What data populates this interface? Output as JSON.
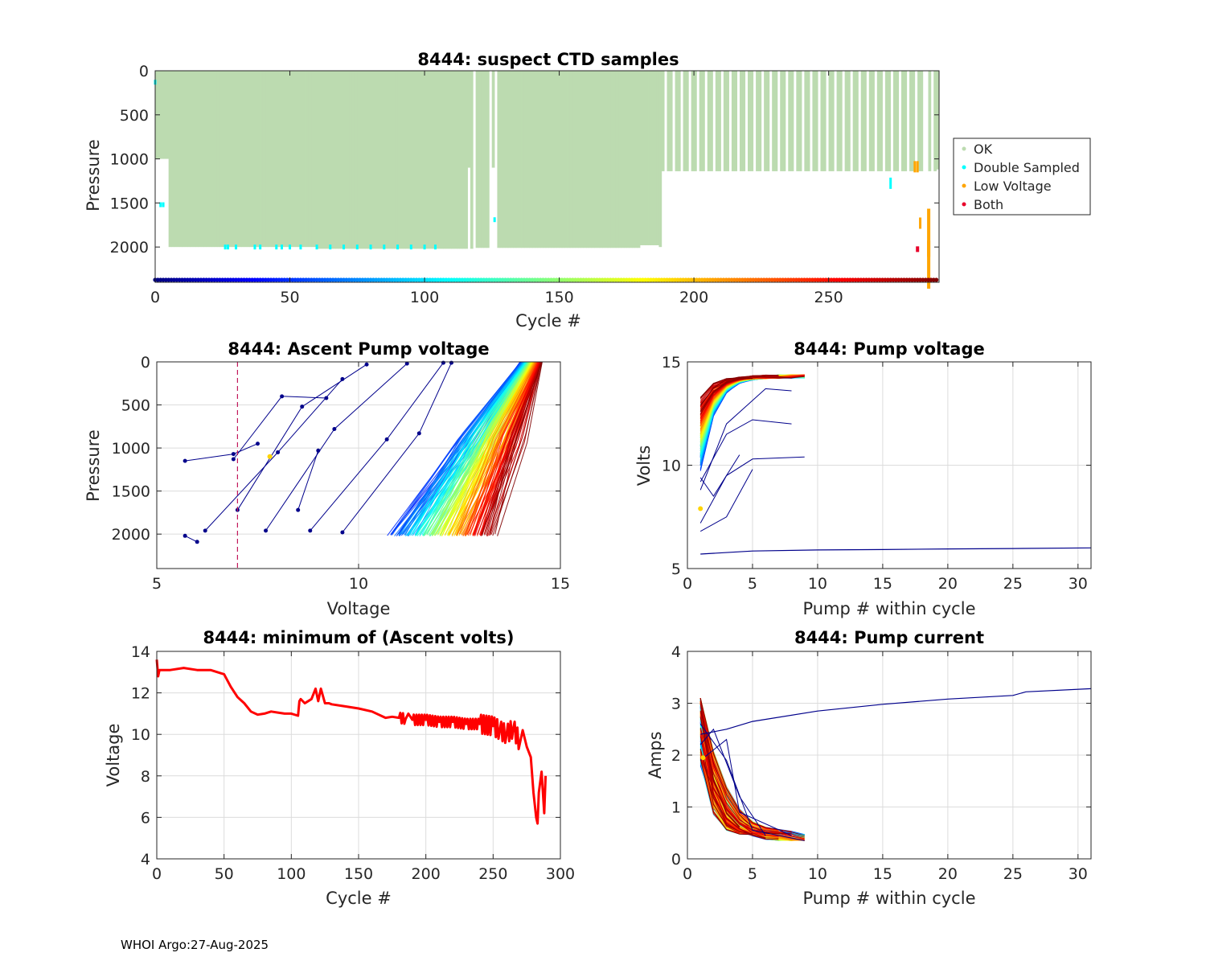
{
  "footer": "WHOI Argo:27-Aug-2025",
  "colors": {
    "ok": "#bcdbb0",
    "double": "#00ffff",
    "low": "#ffa500",
    "both": "#e8002a",
    "min_line": "#ff0000",
    "dashed": "#c2185b"
  },
  "chart_data": [
    {
      "id": "ctd",
      "type": "area",
      "title": "8444: suspect CTD samples",
      "xlabel": "Cycle #",
      "ylabel": "Pressure",
      "xlim": [
        0,
        291
      ],
      "ylim": [
        0,
        2400
      ],
      "y_reversed": true,
      "xticks": [
        "0",
        "50",
        "100",
        "150",
        "200",
        "250"
      ],
      "xtick_values": [
        0,
        50,
        100,
        150,
        200,
        250
      ],
      "yticks": [
        "0",
        "500",
        "1000",
        "1500",
        "2000"
      ],
      "ytick_values": [
        0,
        500,
        1000,
        1500,
        2000
      ],
      "legend": [
        "OK",
        "Double Sampled",
        "Low Voltage",
        "Both"
      ],
      "legend_position": "outside-right",
      "profile_depth_segments": [
        [
          0,
          1000
        ],
        [
          5,
          2000
        ],
        [
          60,
          2020
        ],
        [
          118,
          2010
        ],
        [
          180,
          1980
        ],
        [
          187,
          2000
        ],
        [
          188,
          1140
        ],
        [
          290,
          1120
        ]
      ],
      "double_sampled_points": [
        [
          0,
          130
        ],
        [
          2,
          1520
        ],
        [
          3,
          1520
        ],
        [
          26,
          2000
        ],
        [
          27,
          2000
        ],
        [
          30,
          2000
        ],
        [
          37,
          2000
        ],
        [
          39,
          2000
        ],
        [
          45,
          2000
        ],
        [
          47,
          2000
        ],
        [
          50,
          2000
        ],
        [
          54,
          2000
        ],
        [
          60,
          2000
        ],
        [
          65,
          2000
        ],
        [
          70,
          2000
        ],
        [
          75,
          2000
        ],
        [
          80,
          2000
        ],
        [
          85,
          2000
        ],
        [
          90,
          2000
        ],
        [
          95,
          2000
        ],
        [
          100,
          2000
        ],
        [
          104,
          2000
        ],
        [
          126,
          1690
        ],
        [
          273,
          1240
        ]
      ],
      "low_voltage_points": [
        [
          282,
          1080
        ],
        [
          283,
          1080
        ],
        [
          284,
          1720
        ],
        [
          287,
          1620
        ],
        [
          287,
          1980
        ]
      ],
      "both_points": [
        [
          283,
          2020
        ]
      ]
    },
    {
      "id": "ascent",
      "type": "line",
      "title": "8444: Ascent Pump voltage",
      "xlabel": "Voltage",
      "ylabel": "Pressure",
      "xlim": [
        5,
        15
      ],
      "ylim": [
        0,
        2400
      ],
      "y_reversed": true,
      "xticks": [
        "5",
        "10",
        "15"
      ],
      "xtick_values": [
        5,
        10,
        15
      ],
      "yticks": [
        "0",
        "500",
        "1000",
        "1500",
        "2000"
      ],
      "ytick_values": [
        0,
        500,
        1000,
        1500,
        2000
      ],
      "threshold_voltage": 7.0,
      "late_cycle_segments": [
        [
          [
            5.7,
            1150
          ],
          [
            6.9,
            1070
          ],
          [
            7.5,
            950
          ]
        ],
        [
          [
            5.7,
            2020
          ],
          [
            6.0,
            2090
          ]
        ],
        [
          [
            6.2,
            1960
          ],
          [
            8.0,
            1050
          ],
          [
            9.6,
            200
          ]
        ],
        [
          [
            7.0,
            1720
          ],
          [
            8.6,
            520
          ],
          [
            10.2,
            30
          ]
        ],
        [
          [
            7.7,
            1960
          ],
          [
            9.4,
            780
          ],
          [
            11.2,
            20
          ]
        ],
        [
          [
            8.8,
            1960
          ],
          [
            10.7,
            900
          ],
          [
            12.1,
            10
          ]
        ],
        [
          [
            9.6,
            1980
          ],
          [
            11.5,
            830
          ],
          [
            12.3,
            10
          ]
        ],
        [
          [
            8.5,
            1720
          ],
          [
            9.0,
            1030
          ]
        ],
        [
          [
            6.9,
            1130
          ],
          [
            8.1,
            400
          ],
          [
            9.2,
            420
          ]
        ]
      ]
    },
    {
      "id": "pumpvolt",
      "type": "line",
      "title": "8444: Pump voltage",
      "xlabel": "Pump # within cycle",
      "ylabel": "Volts",
      "xlim": [
        0,
        31
      ],
      "ylim": [
        5,
        15
      ],
      "xticks": [
        "0",
        "5",
        "10",
        "15",
        "20",
        "25",
        "30"
      ],
      "xtick_values": [
        0,
        5,
        10,
        15,
        20,
        25,
        30
      ],
      "yticks": [
        "5",
        "10",
        "15"
      ],
      "ytick_values": [
        5,
        10,
        15
      ],
      "long_series": [
        [
          1,
          5.7
        ],
        [
          5,
          5.85
        ],
        [
          10,
          5.9
        ],
        [
          15,
          5.92
        ],
        [
          20,
          5.95
        ],
        [
          25,
          5.97
        ],
        [
          31,
          6.0
        ]
      ],
      "late_series": [
        [
          [
            1,
            8.8
          ],
          [
            3,
            12.0
          ],
          [
            6,
            13.7
          ],
          [
            8,
            13.6
          ]
        ],
        [
          [
            1,
            9.2
          ],
          [
            3,
            11.5
          ],
          [
            5,
            12.2
          ],
          [
            8,
            12.0
          ]
        ],
        [
          [
            1,
            7.2
          ],
          [
            3,
            9.5
          ],
          [
            5,
            10.3
          ],
          [
            9,
            10.4
          ]
        ],
        [
          [
            1,
            6.8
          ],
          [
            3,
            7.5
          ],
          [
            5,
            9.8
          ]
        ],
        [
          [
            1,
            9.4
          ],
          [
            2,
            8.5
          ],
          [
            4,
            10.5
          ]
        ]
      ]
    },
    {
      "id": "minvolts",
      "type": "line",
      "title": "8444: minimum of (Ascent volts)",
      "xlabel": "Cycle #",
      "ylabel": "Voltage",
      "xlim": [
        0,
        300
      ],
      "ylim": [
        4,
        14
      ],
      "xticks": [
        "0",
        "50",
        "100",
        "150",
        "200",
        "250",
        "300"
      ],
      "xtick_values": [
        0,
        50,
        100,
        150,
        200,
        250,
        300
      ],
      "yticks": [
        "4",
        "6",
        "8",
        "10",
        "12",
        "14"
      ],
      "ytick_values": [
        4,
        6,
        8,
        10,
        12,
        14
      ],
      "x": [
        0,
        1,
        2,
        5,
        10,
        20,
        30,
        40,
        50,
        55,
        60,
        65,
        70,
        75,
        80,
        85,
        90,
        95,
        100,
        105,
        106,
        107,
        110,
        115,
        118,
        120,
        122,
        125,
        128,
        130,
        140,
        150,
        160,
        170,
        175,
        180,
        185,
        187,
        190,
        200,
        210,
        220,
        230,
        240,
        250,
        255,
        260,
        265,
        270,
        272,
        275,
        278,
        280,
        282,
        283,
        284,
        286,
        288,
        289
      ],
      "y": [
        13.6,
        12.8,
        13.1,
        13.1,
        13.1,
        13.2,
        13.1,
        13.1,
        12.9,
        12.3,
        11.8,
        11.5,
        11.1,
        10.95,
        11.0,
        11.1,
        11.05,
        11.0,
        11.0,
        10.9,
        11.6,
        11.7,
        11.5,
        11.7,
        12.2,
        11.6,
        12.2,
        11.5,
        11.5,
        11.45,
        11.35,
        11.25,
        11.1,
        10.8,
        10.85,
        10.8,
        10.75,
        11.0,
        10.7,
        10.7,
        10.6,
        10.6,
        10.5,
        10.5,
        10.4,
        10.2,
        10.0,
        10.3,
        9.6,
        10.2,
        9.4,
        8.9,
        7.2,
        6.0,
        5.7,
        7.2,
        8.2,
        6.2,
        8.0
      ]
    },
    {
      "id": "pumpcurr",
      "type": "line",
      "title": "8444: Pump current",
      "xlabel": "Pump # within cycle",
      "ylabel": "Amps",
      "xlim": [
        0,
        31
      ],
      "ylim": [
        0,
        4
      ],
      "xticks": [
        "0",
        "5",
        "10",
        "15",
        "20",
        "25",
        "30"
      ],
      "xtick_values": [
        0,
        5,
        10,
        15,
        20,
        25,
        30
      ],
      "yticks": [
        "0",
        "1",
        "2",
        "3",
        "4"
      ],
      "ytick_values": [
        0,
        1,
        2,
        3,
        4
      ],
      "long_series": [
        [
          1,
          2.4
        ],
        [
          3,
          2.5
        ],
        [
          5,
          2.65
        ],
        [
          10,
          2.85
        ],
        [
          15,
          2.98
        ],
        [
          20,
          3.08
        ],
        [
          25,
          3.15
        ],
        [
          26,
          3.22
        ],
        [
          31,
          3.28
        ]
      ],
      "late_series": [
        [
          [
            1,
            2.6
          ],
          [
            3,
            1.9
          ],
          [
            5,
            0.55
          ],
          [
            9,
            0.35
          ]
        ],
        [
          [
            1,
            2.2
          ],
          [
            2,
            2.5
          ],
          [
            4,
            1.2
          ],
          [
            6,
            0.45
          ]
        ],
        [
          [
            1,
            1.9
          ],
          [
            3,
            2.3
          ],
          [
            4,
            0.9
          ],
          [
            8,
            0.45
          ]
        ]
      ]
    }
  ]
}
